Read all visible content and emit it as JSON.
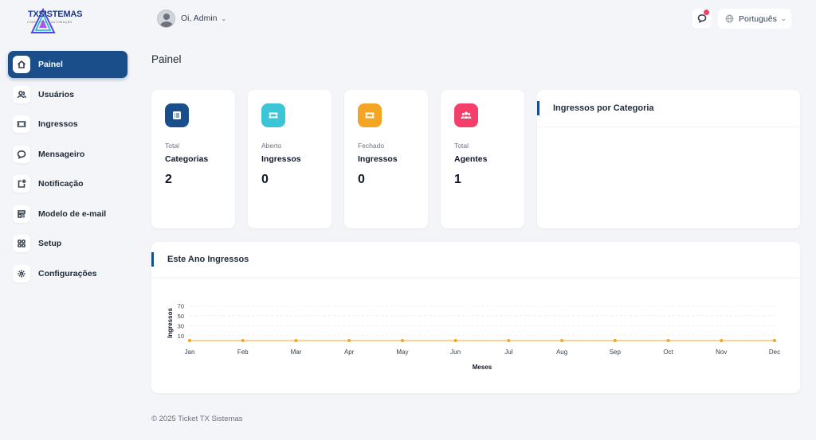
{
  "brand": {
    "name": "TXSISTEMAS",
    "tagline": "CODE · ERP · AUTOMAÇÃO"
  },
  "sidebar": {
    "items": [
      {
        "label": "Painel",
        "icon": "home-icon",
        "active": true
      },
      {
        "label": "Usuários",
        "icon": "users-icon"
      },
      {
        "label": "Ingressos",
        "icon": "ticket-icon"
      },
      {
        "label": "Mensageiro",
        "icon": "message-icon"
      },
      {
        "label": "Notificação",
        "icon": "notification-icon"
      },
      {
        "label": "Modelo de e-mail",
        "icon": "template-icon"
      },
      {
        "label": "Setup",
        "icon": "grid-icon"
      },
      {
        "label": "Configurações",
        "icon": "gear-icon"
      }
    ]
  },
  "header": {
    "greeting": "Oi, Admin",
    "language": "Português"
  },
  "page": {
    "title": "Painel"
  },
  "stats": [
    {
      "caption": "Total",
      "name": "Categorias",
      "value": "2",
      "color": "#1a4e8a",
      "icon": "list-icon"
    },
    {
      "caption": "Aberto",
      "name": "Ingressos",
      "value": "0",
      "color": "#3bc5d6",
      "icon": "ticket-icon"
    },
    {
      "caption": "Fechado",
      "name": "Ingressos",
      "value": "0",
      "color": "#f5a524",
      "icon": "ticket-icon"
    },
    {
      "caption": "Total",
      "name": "Agentes",
      "value": "1",
      "color": "#f43f6b",
      "icon": "users-icon"
    }
  ],
  "category_panel": {
    "title": "Ingressos por Categoria"
  },
  "year_panel": {
    "title": "Este Ano Ingressos"
  },
  "chart_data": {
    "type": "line",
    "categories": [
      "Jan",
      "Feb",
      "Mar",
      "Apr",
      "May",
      "Jun",
      "Jul",
      "Aug",
      "Sep",
      "Oct",
      "Nov",
      "Dec"
    ],
    "series": [
      {
        "values": [
          0,
          0,
          0,
          0,
          0,
          0,
          0,
          0,
          0,
          0,
          0,
          0
        ],
        "color": "#f5a524"
      }
    ],
    "yticks": [
      10,
      30,
      50,
      70
    ],
    "ylim": [
      0,
      80
    ],
    "xlabel": "Meses",
    "ylabel": "Ingressos",
    "grid": true
  },
  "footer": {
    "text": "© 2025 Ticket TX Sistemas"
  }
}
